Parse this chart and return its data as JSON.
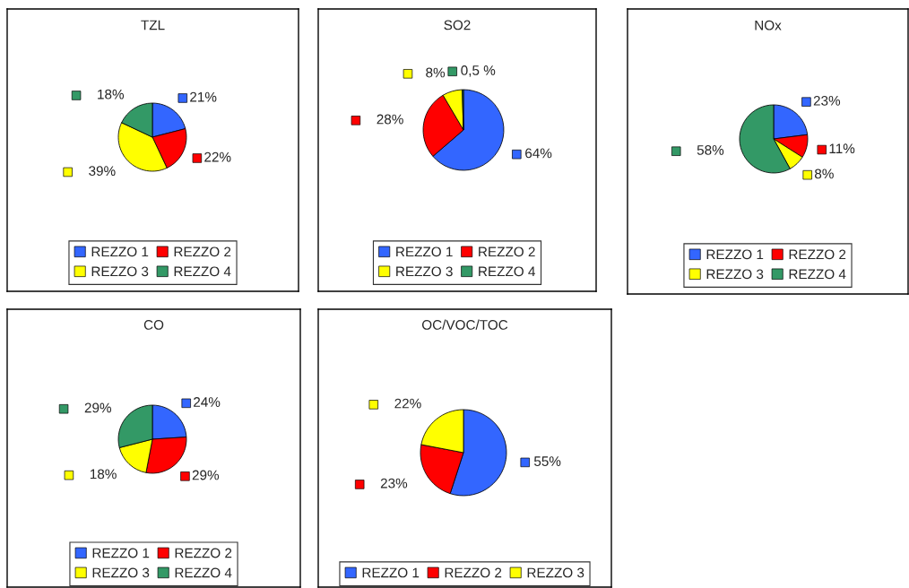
{
  "chart_data": [
    {
      "type": "pie",
      "title": "TZL",
      "categories": [
        "REZZO 1",
        "REZZO 2",
        "REZZO 3",
        "REZZO 4"
      ],
      "values": [
        21,
        22,
        39,
        18
      ],
      "colors": [
        "#3366ff",
        "#ff0000",
        "#ffff00",
        "#339966"
      ],
      "value_labels": [
        "21%",
        "22%",
        "39%",
        "18%"
      ],
      "legend": "bottom"
    },
    {
      "type": "pie",
      "title": "SO2",
      "categories": [
        "REZZO 1",
        "REZZO 2",
        "REZZO 3",
        "REZZO 4"
      ],
      "values": [
        64,
        28,
        8,
        0.5
      ],
      "colors": [
        "#3366ff",
        "#ff0000",
        "#ffff00",
        "#339966"
      ],
      "value_labels": [
        "64%",
        "28%",
        "8%",
        "0,5 %"
      ],
      "legend": "bottom"
    },
    {
      "type": "pie",
      "title": "NOx",
      "categories": [
        "REZZO 1",
        "REZZO 2",
        "REZZO 3",
        "REZZO 4"
      ],
      "values": [
        23,
        11,
        8,
        58
      ],
      "colors": [
        "#3366ff",
        "#ff0000",
        "#ffff00",
        "#339966"
      ],
      "value_labels": [
        "23%",
        "11%",
        "8%",
        "58%"
      ],
      "legend": "bottom"
    },
    {
      "type": "pie",
      "title": "CO",
      "categories": [
        "REZZO 1",
        "REZZO 2",
        "REZZO 3",
        "REZZO 4"
      ],
      "values": [
        24,
        29,
        18,
        29
      ],
      "colors": [
        "#3366ff",
        "#ff0000",
        "#ffff00",
        "#339966"
      ],
      "value_labels": [
        "24%",
        "29%",
        "18%",
        "29%"
      ],
      "legend": "bottom"
    },
    {
      "type": "pie",
      "title": "OC/VOC/TOC",
      "categories": [
        "REZZO 1",
        "REZZO 2",
        "REZZO 3"
      ],
      "values": [
        55,
        23,
        22
      ],
      "colors": [
        "#3366ff",
        "#ff0000",
        "#ffff00"
      ],
      "value_labels": [
        "55%",
        "23%",
        "22%"
      ],
      "legend": "bottom"
    }
  ]
}
